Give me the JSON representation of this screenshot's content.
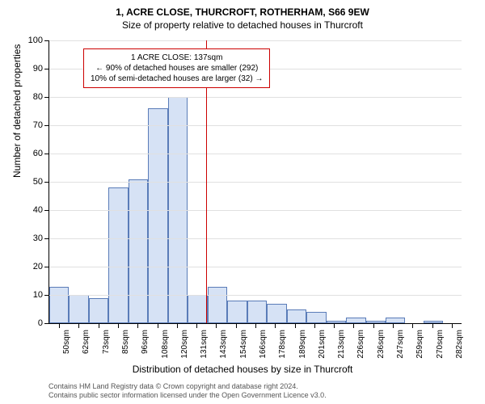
{
  "titles": {
    "main": "1, ACRE CLOSE, THURCROFT, ROTHERHAM, S66 9EW",
    "sub": "Size of property relative to detached houses in Thurcroft"
  },
  "axes": {
    "y_title": "Number of detached properties",
    "x_title": "Distribution of detached houses by size in Thurcroft",
    "y_max": 100,
    "y_tick_step": 10,
    "grid_color": "#e0e0e0",
    "axis_color": "#000000"
  },
  "chart": {
    "type": "bar",
    "categories": [
      "50sqm",
      "62sqm",
      "73sqm",
      "85sqm",
      "96sqm",
      "108sqm",
      "120sqm",
      "131sqm",
      "143sqm",
      "154sqm",
      "166sqm",
      "178sqm",
      "189sqm",
      "201sqm",
      "213sqm",
      "226sqm",
      "236sqm",
      "247sqm",
      "259sqm",
      "270sqm",
      "282sqm"
    ],
    "values": [
      13,
      10,
      9,
      48,
      51,
      76,
      80,
      10,
      13,
      8,
      8,
      7,
      5,
      4,
      1,
      2,
      1,
      2,
      0,
      1,
      0
    ],
    "bar_fill": "#d6e2f5",
    "bar_stroke": "#5a7cb8",
    "background": "#ffffff"
  },
  "marker": {
    "position_index": 8,
    "line_color": "#cc0000",
    "box_border": "#cc0000",
    "box_bg": "#ffffff",
    "lines": [
      "1 ACRE CLOSE: 137sqm",
      "← 90% of detached houses are smaller (292)",
      "10% of semi-detached houses are larger (32) →"
    ]
  },
  "license": {
    "line1": "Contains HM Land Registry data © Crown copyright and database right 2024.",
    "line2": "Contains public sector information licensed under the Open Government Licence v3.0."
  }
}
